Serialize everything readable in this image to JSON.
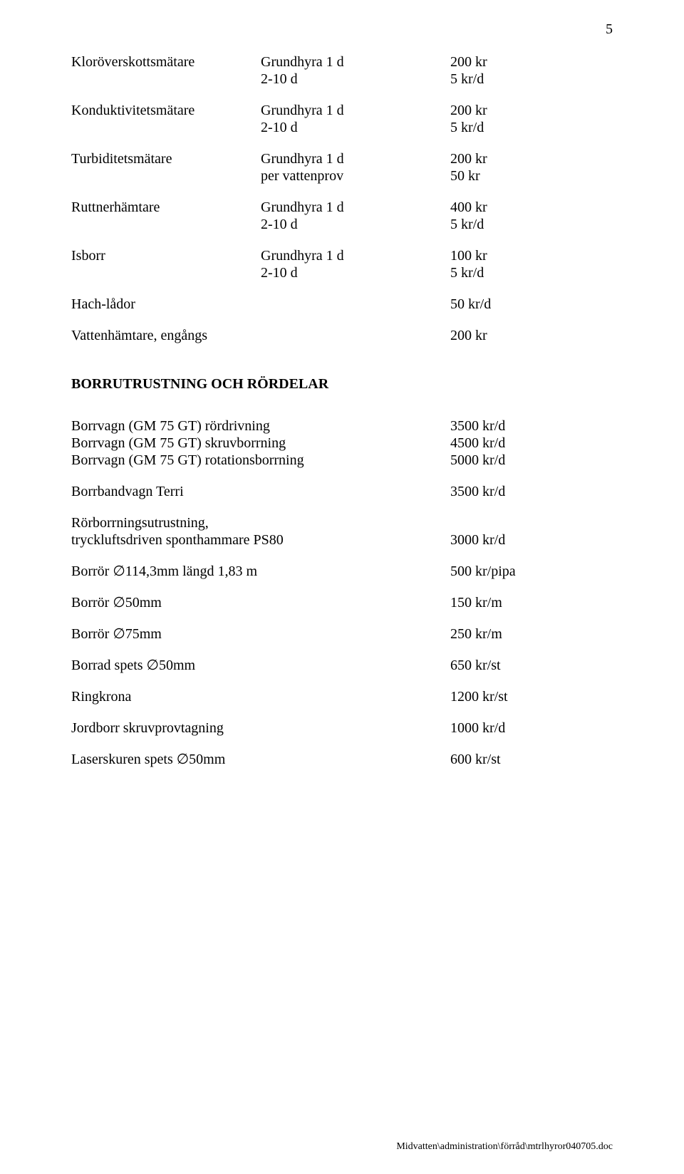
{
  "page_number": "5",
  "equip": {
    "klorover": {
      "name": "Kloröverskottsmätare",
      "l1_desc": "Grundhyra 1 d",
      "l1_val": "200 kr",
      "l2_desc": "2-10 d",
      "l2_val": "5 kr/d"
    },
    "kondukt": {
      "name": "Konduktivitetsmätare",
      "l1_desc": "Grundhyra 1 d",
      "l1_val": "200 kr",
      "l2_desc": "2-10 d",
      "l2_val": "5 kr/d"
    },
    "turbidit": {
      "name": "Turbiditetsmätare",
      "l1_desc": "Grundhyra 1 d",
      "l1_val": "200 kr",
      "l2_desc": "per vattenprov",
      "l2_val": "50 kr"
    },
    "ruttner": {
      "name": "Ruttnerhämtare",
      "l1_desc": "Grundhyra 1 d",
      "l1_val": "400 kr",
      "l2_desc": "2-10 d",
      "l2_val": "5 kr/d"
    },
    "isborr": {
      "name": "Isborr",
      "l1_desc": "Grundhyra 1 d",
      "l1_val": "100 kr",
      "l2_desc": "2-10 d",
      "l2_val": "5 kr/d"
    },
    "hachlador": {
      "name": "Hach-lådor",
      "val": "50 kr/d"
    },
    "vattenhamt": {
      "name": "Vattenhämtare, engångs",
      "val": "200 kr"
    }
  },
  "section_title": "BORRUTRUSTNING OCH RÖRDELAR",
  "borr": {
    "gm75_rordrivning": {
      "k": "Borrvagn (GM 75 GT) rördrivning",
      "v": "3500 kr/d"
    },
    "gm75_skruv": {
      "k": "Borrvagn (GM 75 GT) skruvborrning",
      "v": "4500 kr/d"
    },
    "gm75_rot": {
      "k": "Borrvagn (GM 75 GT) rotationsborrning",
      "v": "5000 kr/d"
    },
    "terri": {
      "k": "Borrbandvagn Terri",
      "v": "3500 kr/d"
    },
    "rorborr_l1": "Rörborrningsutrustning,",
    "rorborr_l2": {
      "k": "tryckluftsdriven sponthammare PS80",
      "v": "3000 kr/d"
    },
    "borror114": {
      "k": "Borrör ∅114,3mm längd 1,83 m",
      "v": "500 kr/pipa"
    },
    "borror50": {
      "k": "Borrör ∅50mm",
      "v": "150 kr/m"
    },
    "borror75": {
      "k": "Borrör ∅75mm",
      "v": "250 kr/m"
    },
    "borradspets": {
      "k": "Borrad spets ∅50mm",
      "v": "650 kr/st"
    },
    "ringkrona": {
      "k": "Ringkrona",
      "v": "1200 kr/st"
    },
    "jordborr": {
      "k": "Jordborr skruvprovtagning",
      "v": "1000 kr/d"
    },
    "laserspets": {
      "k": "Laserskuren spets ∅50mm",
      "v": "600 kr/st"
    }
  },
  "footer_text": "Midvatten\\administration\\förråd\\mtrlhyror040705.doc"
}
